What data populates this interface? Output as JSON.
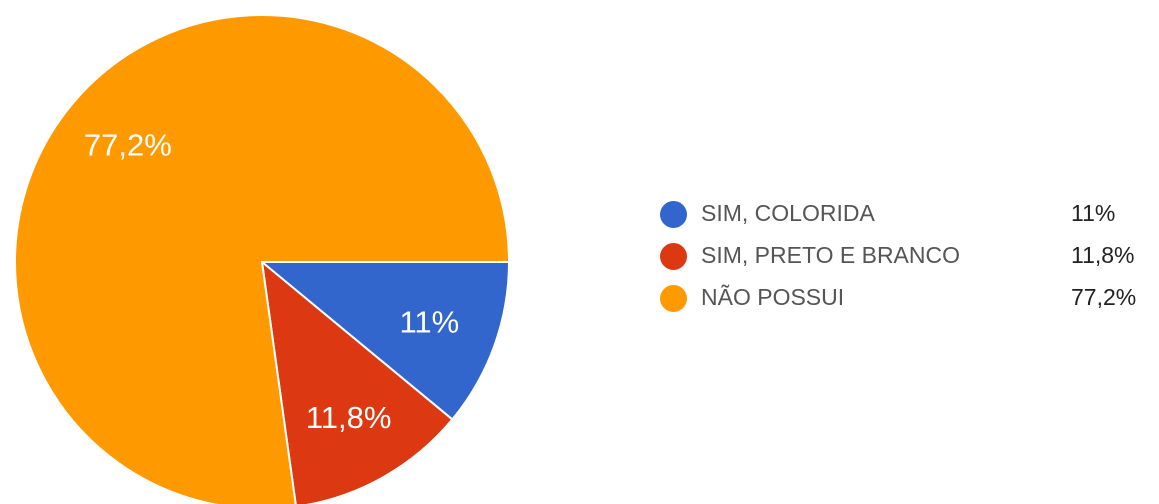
{
  "chart_data": {
    "type": "pie",
    "title": "",
    "slices": [
      {
        "label": "SIM, COLORIDA",
        "value": 11.0,
        "display": "11%",
        "color": "#3366cc"
      },
      {
        "label": "SIM, PRETO E BRANCO",
        "value": 11.8,
        "display": "11,8%",
        "color": "#dc3912"
      },
      {
        "label": "NÃO POSSUI",
        "value": 77.2,
        "display": "77,2%",
        "color": "#ff9900"
      }
    ],
    "start_angle_deg": 90,
    "direction": "clockwise",
    "legend_position": "right"
  }
}
